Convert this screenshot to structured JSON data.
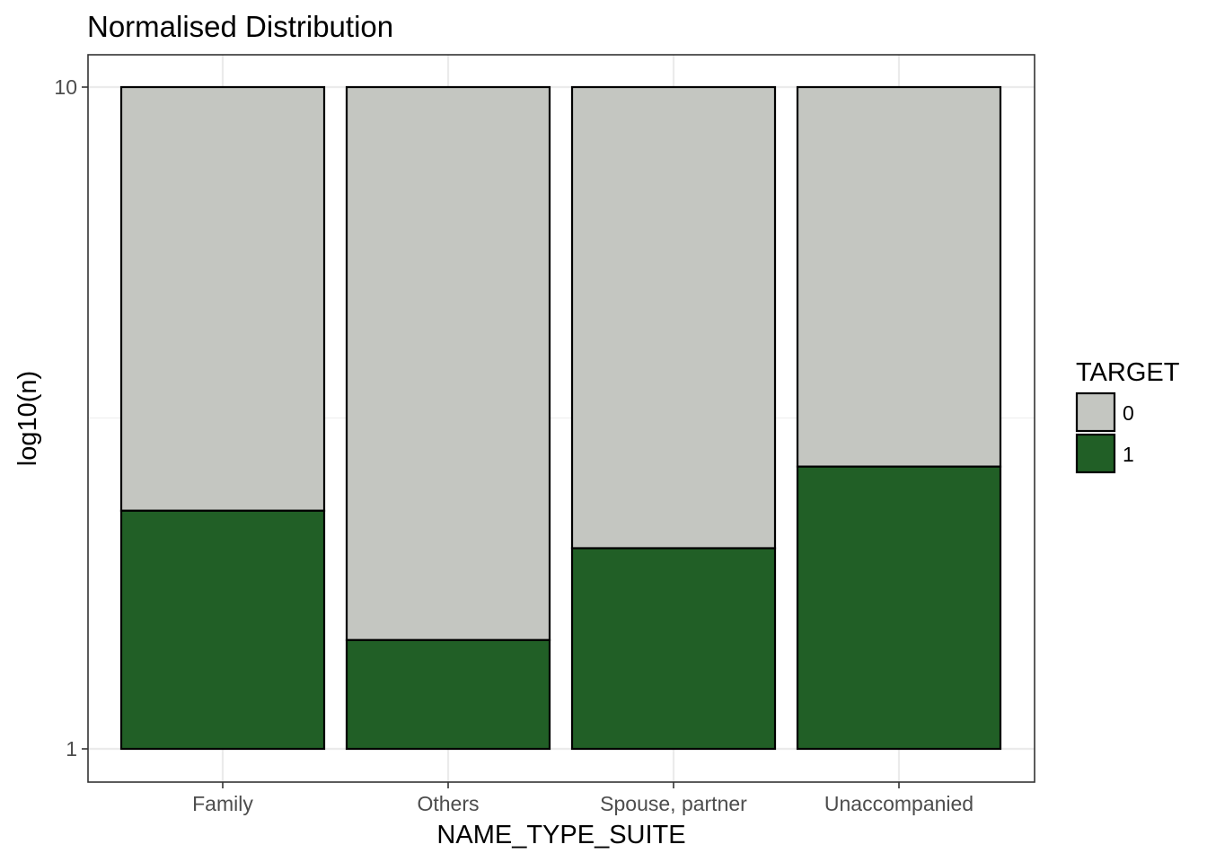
{
  "chart_data": {
    "type": "bar",
    "stacked": true,
    "title": "Normalised Distribution",
    "xlabel": "NAME_TYPE_SUITE",
    "ylabel": "log10(n)",
    "y_scale": "log10",
    "ylim": [
      1,
      10
    ],
    "y_ticks": [
      "1",
      "10"
    ],
    "grid": true,
    "categories": [
      "Family",
      "Others",
      "Spouse, partner",
      "Unaccompanied"
    ],
    "series": [
      {
        "name": "0",
        "color": "#c4c6c1",
        "top_values": [
          10,
          10,
          10,
          10
        ]
      },
      {
        "name": "1",
        "color": "#215f26",
        "values": [
          2.29,
          1.46,
          2.01,
          2.67
        ]
      }
    ],
    "legend": {
      "title": "TARGET",
      "placement": "right",
      "items": [
        {
          "label": "0",
          "color": "#c4c6c1"
        },
        {
          "label": "1",
          "color": "#215f26"
        }
      ]
    }
  }
}
